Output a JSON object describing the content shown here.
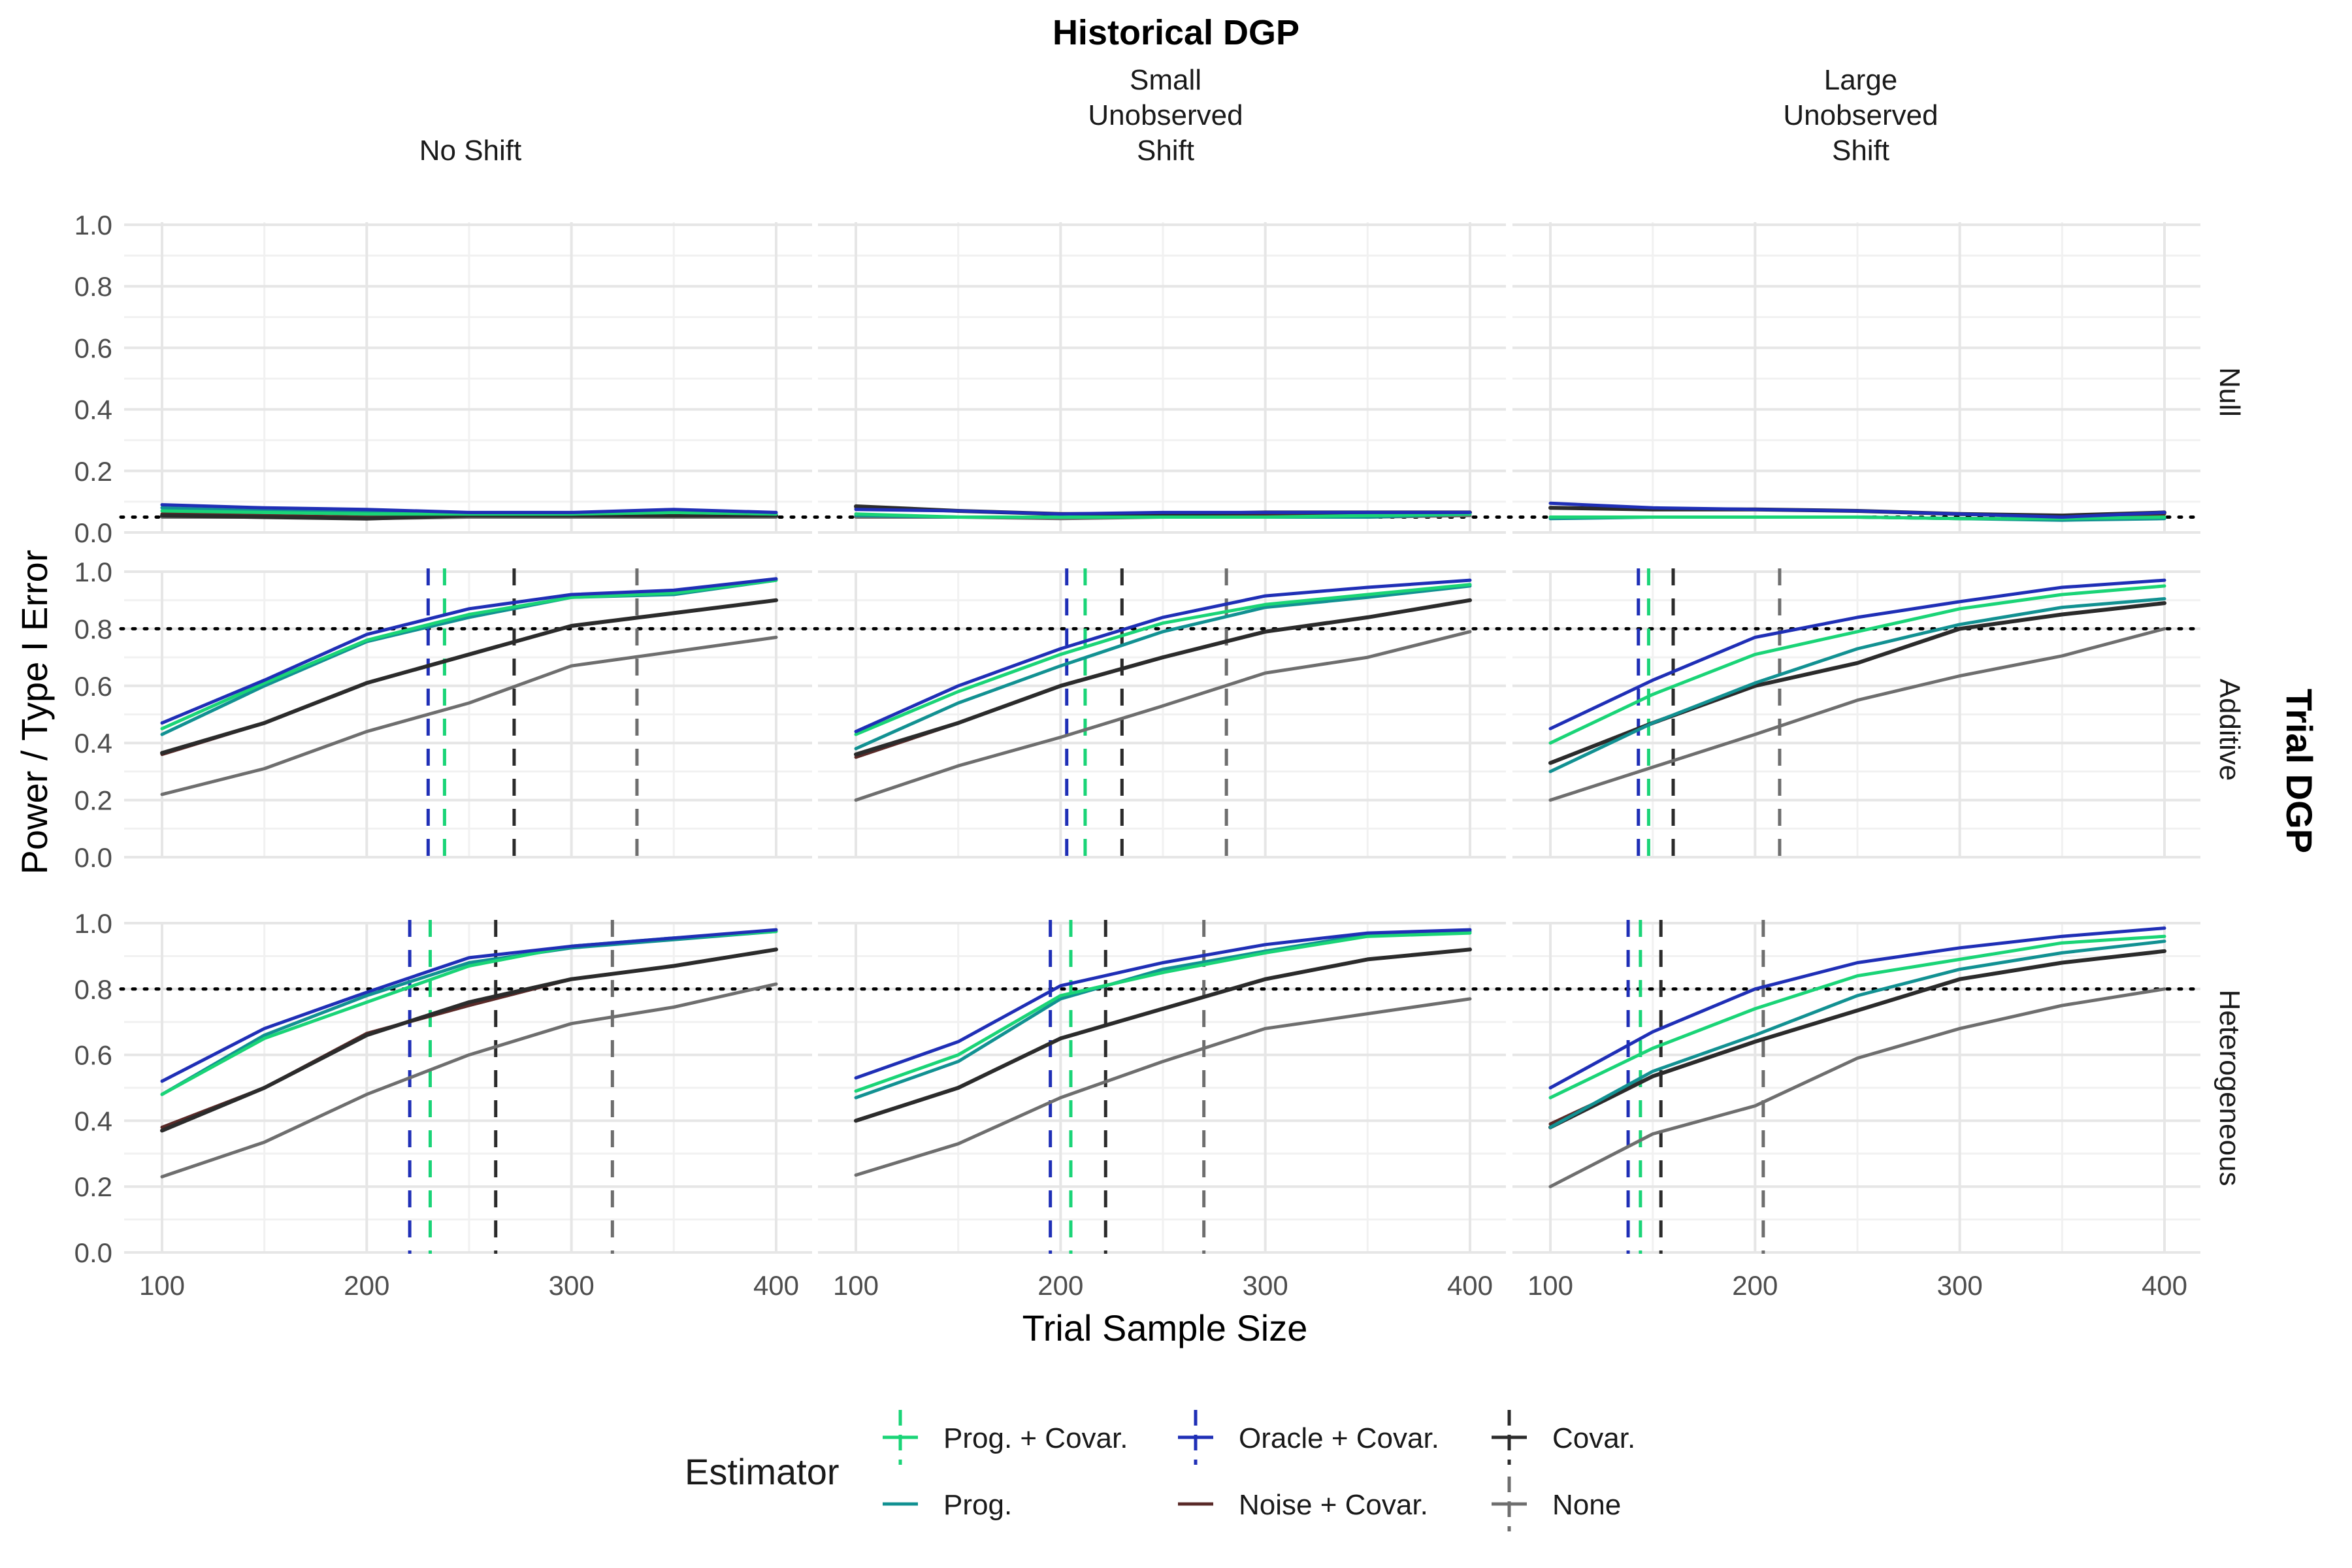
{
  "chart_data": {
    "type": "line",
    "title": "Historical DGP",
    "xlabel": "Trial Sample Size",
    "ylabel": "Power / Type I Error",
    "row_facet_title": "Trial DGP",
    "columns": [
      "No Shift",
      "Small\nUnobserved\nShift",
      "Large\nUnobserved\nShift"
    ],
    "rows": [
      "Null",
      "Additive",
      "Heterogeneous"
    ],
    "x": [
      100,
      150,
      200,
      250,
      300,
      350,
      400
    ],
    "xticks": [
      100,
      200,
      300,
      400
    ],
    "yticks": [
      "0.0",
      "0.2",
      "0.4",
      "0.6",
      "0.8",
      "1.0"
    ],
    "xlim": [
      90,
      403
    ],
    "ylim": [
      0,
      1.02
    ],
    "hlines": {
      "Null": 0.05,
      "Additive": 0.8,
      "Heterogeneous": 0.8
    },
    "legend": {
      "title": "Estimator",
      "entries": [
        {
          "key": "prog_covar",
          "label": "Prog. + Covar.",
          "color": "#1ad477",
          "dashed_vline": true
        },
        {
          "key": "prog",
          "label": "Prog.",
          "color": "#129192",
          "dashed_vline": false
        },
        {
          "key": "oracle_covar",
          "label": "Oracle + Covar.",
          "color": "#1f2fb6",
          "dashed_vline": true
        },
        {
          "key": "noise_covar",
          "label": "Noise + Covar.",
          "color": "#5a2a28",
          "dashed_vline": false
        },
        {
          "key": "covar",
          "label": "Covar.",
          "color": "#2b2b2b",
          "dashed_vline": true
        },
        {
          "key": "none",
          "label": "None",
          "color": "#6e6e6e",
          "dashed_vline": true
        }
      ]
    },
    "panels": [
      {
        "row": 0,
        "col": 0,
        "series": {
          "prog_covar": [
            0.07,
            0.065,
            0.06,
            0.06,
            0.06,
            0.065,
            0.06
          ],
          "prog": [
            0.08,
            0.07,
            0.065,
            0.06,
            0.06,
            0.065,
            0.06
          ],
          "oracle_covar": [
            0.09,
            0.08,
            0.075,
            0.065,
            0.065,
            0.075,
            0.065
          ],
          "noise_covar": [
            0.06,
            0.055,
            0.05,
            0.055,
            0.055,
            0.055,
            0.055
          ],
          "covar": [
            0.055,
            0.05,
            0.045,
            0.055,
            0.055,
            0.055,
            0.055
          ],
          "none": [
            0.05,
            0.05,
            0.045,
            0.05,
            0.05,
            0.05,
            0.05
          ]
        },
        "vlines": {}
      },
      {
        "row": 0,
        "col": 1,
        "series": {
          "prog_covar": [
            0.06,
            0.05,
            0.05,
            0.05,
            0.05,
            0.055,
            0.06
          ],
          "prog": [
            0.055,
            0.05,
            0.05,
            0.05,
            0.05,
            0.05,
            0.06
          ],
          "oracle_covar": [
            0.075,
            0.07,
            0.06,
            0.065,
            0.065,
            0.065,
            0.065
          ],
          "noise_covar": [
            0.08,
            0.07,
            0.06,
            0.06,
            0.06,
            0.06,
            0.065
          ],
          "covar": [
            0.085,
            0.07,
            0.06,
            0.06,
            0.065,
            0.065,
            0.065
          ],
          "none": [
            0.05,
            0.05,
            0.045,
            0.05,
            0.05,
            0.05,
            0.055
          ]
        },
        "vlines": {}
      },
      {
        "row": 0,
        "col": 2,
        "series": {
          "prog_covar": [
            0.05,
            0.05,
            0.05,
            0.05,
            0.045,
            0.045,
            0.05
          ],
          "prog": [
            0.045,
            0.05,
            0.05,
            0.05,
            0.045,
            0.04,
            0.045
          ],
          "oracle_covar": [
            0.095,
            0.08,
            0.075,
            0.07,
            0.06,
            0.05,
            0.065
          ],
          "noise_covar": [
            0.08,
            0.075,
            0.075,
            0.07,
            0.06,
            0.055,
            0.06
          ],
          "covar": [
            0.08,
            0.075,
            0.075,
            0.07,
            0.06,
            0.055,
            0.065
          ],
          "none": [
            0.05,
            0.05,
            0.05,
            0.05,
            0.045,
            0.045,
            0.05
          ]
        },
        "vlines": {}
      },
      {
        "row": 1,
        "col": 0,
        "series": {
          "prog_covar": [
            0.45,
            0.61,
            0.76,
            0.85,
            0.91,
            0.925,
            0.97
          ],
          "prog": [
            0.43,
            0.6,
            0.755,
            0.84,
            0.91,
            0.92,
            0.97
          ],
          "oracle_covar": [
            0.47,
            0.62,
            0.78,
            0.87,
            0.92,
            0.935,
            0.975
          ],
          "noise_covar": [
            0.36,
            0.47,
            0.61,
            0.71,
            0.81,
            0.855,
            0.9
          ],
          "covar": [
            0.365,
            0.47,
            0.61,
            0.71,
            0.81,
            0.855,
            0.9
          ],
          "none": [
            0.22,
            0.31,
            0.44,
            0.54,
            0.67,
            0.72,
            0.77
          ]
        },
        "vlines": {
          "oracle_covar": 230,
          "prog_covar": 238,
          "covar": 272,
          "none": 332
        }
      },
      {
        "row": 1,
        "col": 1,
        "series": {
          "prog_covar": [
            0.43,
            0.58,
            0.71,
            0.82,
            0.885,
            0.92,
            0.955
          ],
          "prog": [
            0.38,
            0.54,
            0.67,
            0.79,
            0.875,
            0.91,
            0.95
          ],
          "oracle_covar": [
            0.44,
            0.6,
            0.73,
            0.84,
            0.915,
            0.945,
            0.97
          ],
          "noise_covar": [
            0.35,
            0.47,
            0.6,
            0.7,
            0.79,
            0.84,
            0.9
          ],
          "covar": [
            0.36,
            0.47,
            0.6,
            0.7,
            0.79,
            0.84,
            0.9
          ],
          "none": [
            0.2,
            0.32,
            0.42,
            0.53,
            0.645,
            0.7,
            0.79
          ]
        },
        "vlines": {
          "oracle_covar": 203,
          "prog_covar": 212,
          "covar": 230,
          "none": 281
        }
      },
      {
        "row": 1,
        "col": 2,
        "series": {
          "prog_covar": [
            0.4,
            0.57,
            0.71,
            0.79,
            0.87,
            0.92,
            0.95
          ],
          "prog": [
            0.3,
            0.47,
            0.61,
            0.73,
            0.815,
            0.875,
            0.905
          ],
          "oracle_covar": [
            0.45,
            0.62,
            0.77,
            0.84,
            0.895,
            0.945,
            0.97
          ],
          "noise_covar": [
            0.33,
            0.47,
            0.6,
            0.68,
            0.8,
            0.85,
            0.89
          ],
          "covar": [
            0.33,
            0.47,
            0.6,
            0.68,
            0.8,
            0.85,
            0.89
          ],
          "none": [
            0.2,
            0.315,
            0.43,
            0.55,
            0.635,
            0.705,
            0.8
          ]
        },
        "vlines": {
          "oracle_covar": 143,
          "prog_covar": 148,
          "covar": 160,
          "none": 212
        }
      },
      {
        "row": 2,
        "col": 0,
        "series": {
          "prog_covar": [
            0.48,
            0.65,
            0.76,
            0.87,
            0.93,
            0.955,
            0.975
          ],
          "prog": [
            0.48,
            0.66,
            0.78,
            0.88,
            0.925,
            0.95,
            0.975
          ],
          "oracle_covar": [
            0.52,
            0.68,
            0.79,
            0.895,
            0.93,
            0.955,
            0.98
          ],
          "noise_covar": [
            0.38,
            0.5,
            0.665,
            0.75,
            0.83,
            0.87,
            0.92
          ],
          "covar": [
            0.37,
            0.5,
            0.66,
            0.76,
            0.83,
            0.87,
            0.92
          ],
          "none": [
            0.23,
            0.335,
            0.48,
            0.6,
            0.695,
            0.745,
            0.815
          ]
        },
        "vlines": {
          "oracle_covar": 221,
          "prog_covar": 231,
          "covar": 263,
          "none": 320
        }
      },
      {
        "row": 2,
        "col": 1,
        "series": {
          "prog_covar": [
            0.49,
            0.6,
            0.78,
            0.85,
            0.91,
            0.96,
            0.97
          ],
          "prog": [
            0.47,
            0.58,
            0.77,
            0.86,
            0.915,
            0.965,
            0.975
          ],
          "oracle_covar": [
            0.53,
            0.64,
            0.81,
            0.88,
            0.935,
            0.97,
            0.98
          ],
          "noise_covar": [
            0.4,
            0.5,
            0.65,
            0.74,
            0.83,
            0.89,
            0.92
          ],
          "covar": [
            0.4,
            0.5,
            0.65,
            0.74,
            0.83,
            0.89,
            0.92
          ],
          "none": [
            0.235,
            0.33,
            0.47,
            0.58,
            0.68,
            0.725,
            0.77
          ]
        },
        "vlines": {
          "oracle_covar": 195,
          "prog_covar": 205,
          "covar": 222,
          "none": 270
        }
      },
      {
        "row": 2,
        "col": 2,
        "series": {
          "prog_covar": [
            0.47,
            0.62,
            0.74,
            0.84,
            0.89,
            0.94,
            0.96
          ],
          "prog": [
            0.38,
            0.55,
            0.66,
            0.78,
            0.86,
            0.91,
            0.945
          ],
          "oracle_covar": [
            0.5,
            0.67,
            0.8,
            0.88,
            0.925,
            0.96,
            0.985
          ],
          "noise_covar": [
            0.39,
            0.535,
            0.64,
            0.735,
            0.83,
            0.88,
            0.915
          ],
          "covar": [
            0.38,
            0.535,
            0.64,
            0.735,
            0.83,
            0.88,
            0.915
          ],
          "none": [
            0.2,
            0.36,
            0.445,
            0.59,
            0.68,
            0.75,
            0.8
          ]
        },
        "vlines": {
          "oracle_covar": 138,
          "prog_covar": 144,
          "covar": 154,
          "none": 204
        }
      }
    ]
  }
}
